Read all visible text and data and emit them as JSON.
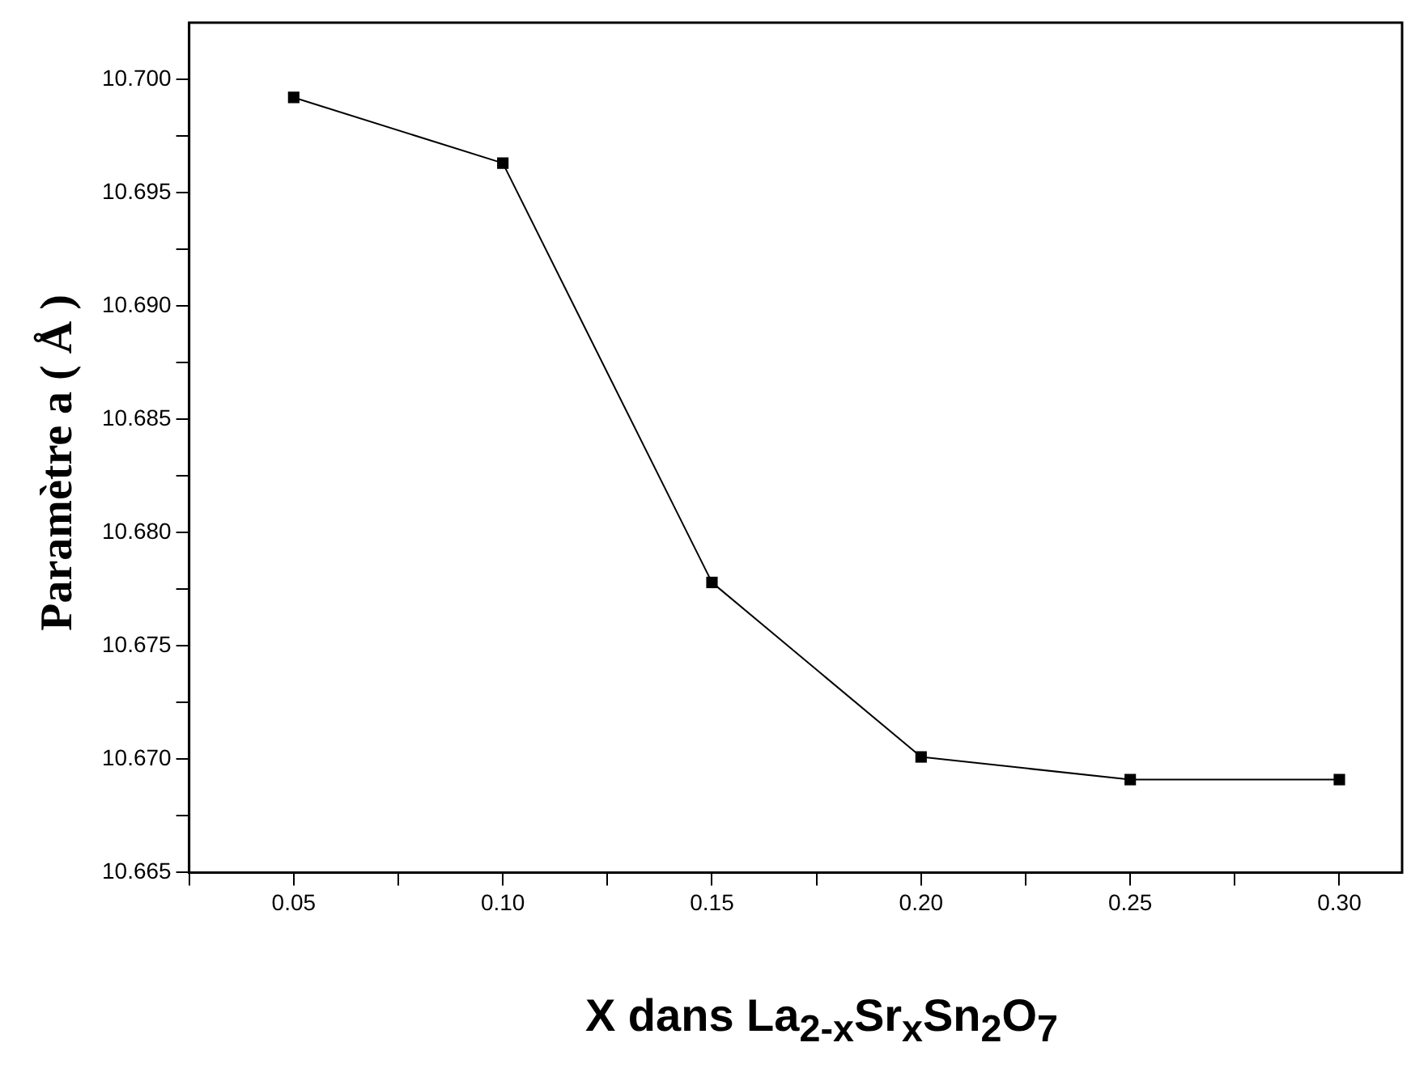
{
  "chart_data": {
    "type": "line",
    "xlabel": "X dans La$_{2-x}$Sr$_{x}$Sn$_{2}$O$_{7}$",
    "ylabel": "Paramètre a ( Å )",
    "x": [
      0.05,
      0.1,
      0.15,
      0.2,
      0.25,
      0.3
    ],
    "series": [
      {
        "color": "#000000",
        "values": [
          10.6992,
          10.6963,
          10.6778,
          10.6701,
          10.6691,
          10.6691
        ]
      }
    ],
    "xlim": [
      0.025,
      0.315
    ],
    "xticks": [
      {
        "value": 0.025,
        "label": null
      },
      {
        "value": 0.05,
        "label": "0.05"
      },
      {
        "value": 0.075,
        "label": null
      },
      {
        "value": 0.1,
        "label": "0.10"
      },
      {
        "value": 0.125,
        "label": null
      },
      {
        "value": 0.15,
        "label": "0.15"
      },
      {
        "value": 0.175,
        "label": null
      },
      {
        "value": 0.2,
        "label": "0.20"
      },
      {
        "value": 0.225,
        "label": null
      },
      {
        "value": 0.25,
        "label": "0.25"
      },
      {
        "value": 0.275,
        "label": null
      },
      {
        "value": 0.3,
        "label": "0.30"
      }
    ],
    "ylim": [
      10.665,
      10.7025
    ],
    "yticks": [
      {
        "value": 10.665,
        "label": "10.665"
      },
      {
        "value": 10.6675,
        "label": null
      },
      {
        "value": 10.67,
        "label": "10.670"
      },
      {
        "value": 10.6725,
        "label": null
      },
      {
        "value": 10.675,
        "label": "10.675"
      },
      {
        "value": 10.6775,
        "label": null
      },
      {
        "value": 10.68,
        "label": "10.680"
      },
      {
        "value": 10.6825,
        "label": null
      },
      {
        "value": 10.685,
        "label": "10.685"
      },
      {
        "value": 10.6875,
        "label": null
      },
      {
        "value": 10.69,
        "label": "10.690"
      },
      {
        "value": 10.6925,
        "label": null
      },
      {
        "value": 10.695,
        "label": "10.695"
      },
      {
        "value": 10.6975,
        "label": null
      },
      {
        "value": 10.7,
        "label": "10.700"
      }
    ],
    "grid": false,
    "legend": false,
    "marker": "square",
    "line_style": "solid"
  }
}
